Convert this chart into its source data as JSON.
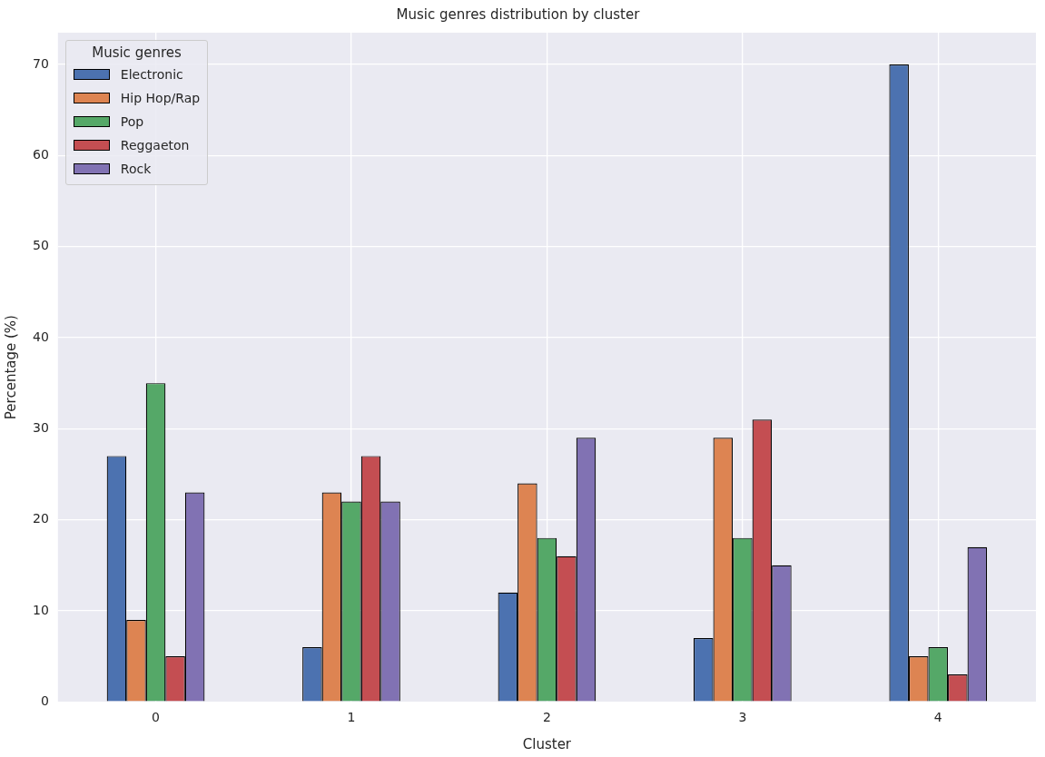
{
  "chart_data": {
    "type": "bar",
    "title": "Music genres distribution by cluster",
    "xlabel": "Cluster",
    "ylabel": "Percentage (%)",
    "legend_title": "Music genres",
    "categories": [
      "0",
      "1",
      "2",
      "3",
      "4"
    ],
    "series": [
      {
        "name": "Electronic",
        "color": "#4c72b0",
        "values": [
          27,
          6,
          12,
          7,
          70
        ]
      },
      {
        "name": "Hip Hop/Rap",
        "color": "#dd8452",
        "values": [
          9,
          23,
          24,
          29,
          5
        ]
      },
      {
        "name": "Pop",
        "color": "#55a868",
        "values": [
          35,
          22,
          18,
          18,
          6
        ]
      },
      {
        "name": "Reggaeton",
        "color": "#c44e52",
        "values": [
          5,
          27,
          16,
          31,
          3
        ]
      },
      {
        "name": "Rock",
        "color": "#8172b3",
        "values": [
          23,
          22,
          29,
          15,
          17
        ]
      }
    ],
    "ylim": [
      0,
      73.5
    ],
    "yticks": [
      0,
      10,
      20,
      30,
      40,
      50,
      60,
      70
    ],
    "grid": true,
    "legend": "top left"
  }
}
